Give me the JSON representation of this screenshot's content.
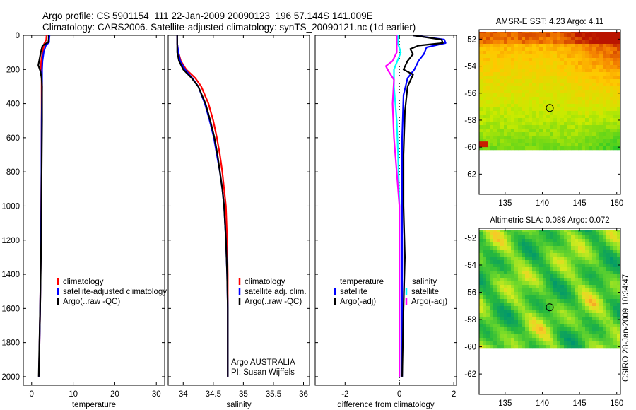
{
  "header": {
    "line1": "Argo profile: CS 5901154_111 22-Jan-2009 20090123_196 57.144S 141.009E",
    "line2": "Climatology: CARS2006. Satellite-adjusted climatology: synTS_20090121.nc (1d earlier)"
  },
  "side_label": "CSIRO 28-Jan-2009 10:34:47",
  "colors": {
    "climatology": "#ff0000",
    "satellite": "#0000ff",
    "argo": "#000000",
    "satellite_salinity": "#00ffff",
    "argo_salinity": "#ff00ff"
  },
  "chart_data": [
    {
      "id": "temperature",
      "type": "line",
      "xlabel": "temperature",
      "ylabel": "",
      "xlim": [
        -2,
        32
      ],
      "ylim": [
        2050,
        0
      ],
      "xticks": [
        0,
        10,
        20,
        30
      ],
      "yticks": [
        0,
        200,
        400,
        600,
        800,
        1000,
        1200,
        1400,
        1600,
        1800,
        2000
      ],
      "legend": {
        "placement": "lower-right",
        "entries": [
          "climatology",
          "satellite-adjusted climatology",
          "Argo(..raw -QC)"
        ]
      },
      "series": [
        {
          "name": "climatology",
          "color": "#ff0000",
          "points": [
            [
              3.6,
              0
            ],
            [
              3.5,
              25
            ],
            [
              3.0,
              50
            ],
            [
              2.6,
              100
            ],
            [
              2.3,
              150
            ],
            [
              2.2,
              200
            ],
            [
              2.4,
              250
            ],
            [
              2.4,
              300
            ],
            [
              2.4,
              500
            ],
            [
              2.35,
              800
            ],
            [
              2.25,
              1200
            ],
            [
              2.05,
              1600
            ],
            [
              1.75,
              2000
            ]
          ]
        },
        {
          "name": "satellite-adjusted climatology",
          "color": "#0000ff",
          "points": [
            [
              4.3,
              0
            ],
            [
              4.2,
              25
            ],
            [
              4.2,
              40
            ],
            [
              3.4,
              60
            ],
            [
              2.9,
              100
            ],
            [
              2.6,
              150
            ],
            [
              2.5,
              200
            ],
            [
              2.5,
              250
            ],
            [
              2.5,
              300
            ],
            [
              2.4,
              500
            ],
            [
              2.35,
              800
            ],
            [
              2.25,
              1200
            ],
            [
              2.05,
              1600
            ],
            [
              1.75,
              2000
            ]
          ]
        },
        {
          "name": "Argo(..raw -QC)",
          "color": "#000000",
          "points": [
            [
              4.1,
              0
            ],
            [
              4.1,
              25
            ],
            [
              4.0,
              40
            ],
            [
              2.6,
              60
            ],
            [
              2.2,
              100
            ],
            [
              1.8,
              150
            ],
            [
              1.6,
              175
            ],
            [
              2.1,
              210
            ],
            [
              2.4,
              250
            ],
            [
              2.5,
              300
            ],
            [
              2.5,
              500
            ],
            [
              2.4,
              800
            ],
            [
              2.3,
              1200
            ],
            [
              2.05,
              1600
            ],
            [
              1.7,
              2000
            ]
          ]
        }
      ]
    },
    {
      "id": "salinity",
      "type": "line",
      "xlabel": "salinity",
      "ylabel": "",
      "xlim": [
        33.75,
        36.1
      ],
      "ylim": [
        2050,
        0
      ],
      "xticks": [
        34,
        34.5,
        35,
        35.5,
        36
      ],
      "xtick_labels": [
        "34",
        "34.5",
        "35",
        "35.5",
        "36"
      ],
      "yticks": [
        0,
        200,
        400,
        600,
        800,
        1000,
        1200,
        1400,
        1600,
        1800,
        2000
      ],
      "legend": {
        "placement": "lower-right",
        "entries": [
          "climatology",
          "satellite adj. clim.",
          "Argo(..raw -QC)"
        ]
      },
      "annotation": [
        "Argo AUSTRALIA",
        "PI: Susan Wijffels"
      ],
      "series": [
        {
          "name": "climatology",
          "color": "#ff0000",
          "points": [
            [
              33.9,
              0
            ],
            [
              33.9,
              50
            ],
            [
              33.92,
              100
            ],
            [
              33.96,
              150
            ],
            [
              34.05,
              200
            ],
            [
              34.2,
              250
            ],
            [
              34.3,
              300
            ],
            [
              34.42,
              400
            ],
            [
              34.5,
              500
            ],
            [
              34.56,
              600
            ],
            [
              34.61,
              700
            ],
            [
              34.65,
              800
            ],
            [
              34.68,
              900
            ],
            [
              34.71,
              1000
            ],
            [
              34.73,
              1200
            ],
            [
              34.74,
              1400
            ],
            [
              34.74,
              1600
            ],
            [
              34.74,
              1800
            ],
            [
              34.74,
              2000
            ]
          ]
        },
        {
          "name": "satellite adj. clim.",
          "color": "#0000ff",
          "points": [
            [
              33.9,
              0
            ],
            [
              33.9,
              50
            ],
            [
              33.92,
              100
            ],
            [
              33.95,
              150
            ],
            [
              34.03,
              200
            ],
            [
              34.15,
              250
            ],
            [
              34.25,
              300
            ],
            [
              34.36,
              400
            ],
            [
              34.44,
              500
            ],
            [
              34.51,
              600
            ],
            [
              34.56,
              700
            ],
            [
              34.61,
              800
            ],
            [
              34.65,
              900
            ],
            [
              34.68,
              1000
            ],
            [
              34.71,
              1200
            ],
            [
              34.73,
              1400
            ],
            [
              34.74,
              1600
            ],
            [
              34.74,
              1800
            ],
            [
              34.74,
              2000
            ]
          ]
        },
        {
          "name": "Argo(..raw -QC)",
          "color": "#000000",
          "points": [
            [
              33.9,
              0
            ],
            [
              33.9,
              50
            ],
            [
              33.9,
              100
            ],
            [
              33.93,
              150
            ],
            [
              34.0,
              200
            ],
            [
              34.14,
              250
            ],
            [
              34.25,
              300
            ],
            [
              34.37,
              400
            ],
            [
              34.45,
              500
            ],
            [
              34.52,
              600
            ],
            [
              34.57,
              700
            ],
            [
              34.61,
              800
            ],
            [
              34.65,
              900
            ],
            [
              34.68,
              1000
            ],
            [
              34.71,
              1200
            ],
            [
              34.73,
              1400
            ],
            [
              34.74,
              1600
            ],
            [
              34.74,
              1800
            ],
            [
              34.74,
              2000
            ]
          ]
        }
      ]
    },
    {
      "id": "difference",
      "type": "line",
      "xlabel": "difference from climatology",
      "ylabel": "",
      "xlim": [
        -3.1,
        2.1
      ],
      "ylim": [
        2050,
        0
      ],
      "xticks": [
        -2,
        0,
        2
      ],
      "yticks": [
        0,
        200,
        400,
        600,
        800,
        1000,
        1200,
        1400,
        1600,
        1800,
        2000
      ],
      "legend": {
        "placement": "lower-middle",
        "temperature_header": "temperature",
        "temperature_entries": [
          "satellite",
          "Argo(-adj)"
        ],
        "salinity_header": "salinity",
        "salinity_entries": [
          "satellite",
          "Argo(-adj)"
        ]
      },
      "series": [
        {
          "name": "temperature satellite",
          "color": "#0000ff",
          "points": [
            [
              0.5,
              0
            ],
            [
              1.65,
              25
            ],
            [
              1.7,
              45
            ],
            [
              1.0,
              70
            ],
            [
              0.9,
              110
            ],
            [
              0.7,
              150
            ],
            [
              0.55,
              200
            ],
            [
              0.3,
              250
            ],
            [
              0.15,
              350
            ],
            [
              0.1,
              600
            ],
            [
              0.1,
              1000
            ],
            [
              0.1,
              1500
            ],
            [
              0.1,
              2000
            ]
          ]
        },
        {
          "name": "temperature Argo(-adj)",
          "color": "#000000",
          "points": [
            [
              0.5,
              0
            ],
            [
              1.55,
              25
            ],
            [
              1.6,
              45
            ],
            [
              0.7,
              60
            ],
            [
              0.4,
              80
            ],
            [
              0.5,
              110
            ],
            [
              0.3,
              150
            ],
            [
              0.15,
              200
            ],
            [
              0.5,
              230
            ],
            [
              0.3,
              300
            ],
            [
              0.2,
              450
            ],
            [
              0.15,
              700
            ],
            [
              0.15,
              1000
            ],
            [
              0.2,
              1300
            ],
            [
              0.15,
              1600
            ],
            [
              0.1,
              2000
            ]
          ]
        },
        {
          "name": "salinity satellite",
          "color": "#00ffff",
          "points": [
            [
              -0.05,
              0
            ],
            [
              -0.05,
              50
            ],
            [
              0.05,
              100
            ],
            [
              -0.2,
              200
            ],
            [
              -0.2,
              300
            ],
            [
              -0.1,
              500
            ],
            [
              -0.05,
              700
            ],
            [
              0.0,
              1000
            ],
            [
              0.0,
              1500
            ],
            [
              0.0,
              2000
            ]
          ]
        },
        {
          "name": "salinity Argo(-adj)",
          "color": "#ff00ff",
          "points": [
            [
              -0.1,
              0
            ],
            [
              -0.1,
              50
            ],
            [
              -0.1,
              100
            ],
            [
              -0.25,
              150
            ],
            [
              -0.5,
              180
            ],
            [
              -0.4,
              210
            ],
            [
              -0.2,
              260
            ],
            [
              -0.25,
              400
            ],
            [
              -0.2,
              600
            ],
            [
              -0.1,
              800
            ],
            [
              0.0,
              1000
            ],
            [
              0.0,
              1500
            ],
            [
              0.0,
              2000
            ]
          ]
        }
      ]
    },
    {
      "id": "sst_map",
      "type": "heatmap",
      "title": "AMSR-E SST: 4.23 Argo: 4.11",
      "xlim": [
        131.5,
        150.5
      ],
      "ylim": [
        -63.5,
        -51.3
      ],
      "xticks": [
        135,
        140,
        145,
        150
      ],
      "yticks": [
        -52,
        -54,
        -56,
        -58,
        -60,
        -62
      ],
      "data_extent": {
        "lat_min": -60,
        "lat_max": -51.3
      },
      "marker": {
        "lon": 141.0,
        "lat": -57.1
      }
    },
    {
      "id": "sla_map",
      "type": "heatmap",
      "title": "Altimetric SLA: 0.089 Argo: 0.072",
      "xlim": [
        131.5,
        150.5
      ],
      "ylim": [
        -63.5,
        -51.3
      ],
      "xticks": [
        135,
        140,
        145,
        150
      ],
      "yticks": [
        -52,
        -54,
        -56,
        -58,
        -60,
        -62
      ],
      "data_extent": {
        "lat_min": -60,
        "lat_max": -51.3
      },
      "marker": {
        "lon": 141.0,
        "lat": -57.1
      }
    }
  ]
}
